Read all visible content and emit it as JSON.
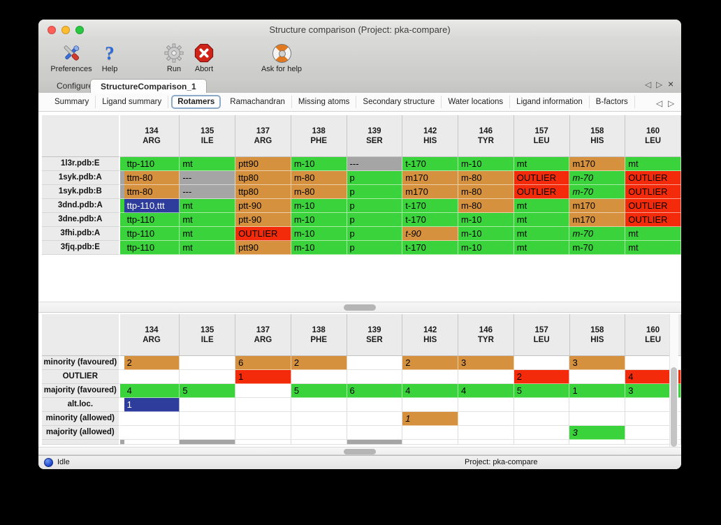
{
  "window": {
    "title": "Structure comparison (Project: pka-compare)"
  },
  "toolbar": {
    "items": [
      {
        "label": "Preferences",
        "icon": "preferences-icon"
      },
      {
        "label": "Help",
        "icon": "help-icon"
      },
      {
        "label": "Run",
        "icon": "run-icon"
      },
      {
        "label": "Abort",
        "icon": "abort-icon"
      },
      {
        "label": "Ask for help",
        "icon": "ask-for-help-icon"
      }
    ]
  },
  "tabs": {
    "items": [
      "Configure",
      "StructureComparison_1"
    ],
    "active": "StructureComparison_1"
  },
  "subtabs": {
    "items": [
      "Summary",
      "Ligand summary",
      "Rotamers",
      "Ramachandran",
      "Missing atoms",
      "Secondary structure",
      "Water locations",
      "Ligand information",
      "B-factors"
    ],
    "active": "Rotamers"
  },
  "icons": {
    "prev_glyph": "◁",
    "next_glyph": "▷",
    "close_glyph": "×",
    "help_glyph": "?"
  },
  "colors": {
    "g": "#3bd33b",
    "o": "#d5913d",
    "r": "#f42b0b",
    "x": "#a5a5a5",
    "b": "#2e3d9b"
  },
  "columns": [
    {
      "num": "134",
      "res": "ARG"
    },
    {
      "num": "135",
      "res": "ILE"
    },
    {
      "num": "137",
      "res": "ARG"
    },
    {
      "num": "138",
      "res": "PHE"
    },
    {
      "num": "139",
      "res": "SER"
    },
    {
      "num": "142",
      "res": "HIS"
    },
    {
      "num": "146",
      "res": "TYR"
    },
    {
      "num": "157",
      "res": "LEU"
    },
    {
      "num": "158",
      "res": "HIS"
    },
    {
      "num": "160",
      "res": "LEU"
    }
  ],
  "top_table": {
    "rows": [
      {
        "label": "1l3r.pdb:E",
        "edge": "g",
        "cells": [
          [
            "ttp-110",
            "g"
          ],
          [
            "mt",
            "g"
          ],
          [
            "ptt90",
            "o"
          ],
          [
            "m-10",
            "g"
          ],
          [
            "---",
            "x"
          ],
          [
            "t-170",
            "g"
          ],
          [
            "m-10",
            "g"
          ],
          [
            "mt",
            "g"
          ],
          [
            "m170",
            "o"
          ],
          [
            "mt",
            "g"
          ]
        ]
      },
      {
        "label": "1syk.pdb:A",
        "edge": "x",
        "cells": [
          [
            "ttm-80",
            "o"
          ],
          [
            "---",
            "x"
          ],
          [
            "ttp80",
            "o"
          ],
          [
            "m-80",
            "o"
          ],
          [
            "p",
            "g"
          ],
          [
            "m170",
            "o"
          ],
          [
            "m-80",
            "o"
          ],
          [
            "OUTLIER",
            "r"
          ],
          [
            "m-70",
            "g",
            1
          ],
          [
            "OUTLIER",
            "r"
          ]
        ]
      },
      {
        "label": "1syk.pdb:B",
        "edge": "x",
        "cells": [
          [
            "ttm-80",
            "o"
          ],
          [
            "---",
            "x"
          ],
          [
            "ttp80",
            "o"
          ],
          [
            "m-80",
            "o"
          ],
          [
            "p",
            "g"
          ],
          [
            "m170",
            "o"
          ],
          [
            "m-80",
            "o"
          ],
          [
            "OUTLIER",
            "r"
          ],
          [
            "m-70",
            "g",
            1
          ],
          [
            "OUTLIER",
            "r"
          ]
        ]
      },
      {
        "label": "3dnd.pdb:A",
        "edge": "g",
        "cells": [
          [
            "ttp-110,ttt",
            "b"
          ],
          [
            "mt",
            "g"
          ],
          [
            "ptt-90",
            "o"
          ],
          [
            "m-10",
            "g"
          ],
          [
            "p",
            "g"
          ],
          [
            "t-170",
            "g"
          ],
          [
            "m-80",
            "o"
          ],
          [
            "mt",
            "g"
          ],
          [
            "m170",
            "o"
          ],
          [
            "OUTLIER",
            "r"
          ]
        ]
      },
      {
        "label": "3dne.pdb:A",
        "edge": "g",
        "cells": [
          [
            "ttp-110",
            "g"
          ],
          [
            "mt",
            "g"
          ],
          [
            "ptt-90",
            "o"
          ],
          [
            "m-10",
            "g"
          ],
          [
            "p",
            "g"
          ],
          [
            "t-170",
            "g"
          ],
          [
            "m-10",
            "g"
          ],
          [
            "mt",
            "g"
          ],
          [
            "m170",
            "o"
          ],
          [
            "OUTLIER",
            "r"
          ]
        ]
      },
      {
        "label": "3fhi.pdb:A",
        "edge": "g",
        "cells": [
          [
            "ttp-110",
            "g"
          ],
          [
            "mt",
            "g"
          ],
          [
            "OUTLIER",
            "r"
          ],
          [
            "m-10",
            "g"
          ],
          [
            "p",
            "g"
          ],
          [
            "t-90",
            "o",
            1
          ],
          [
            "m-10",
            "g"
          ],
          [
            "mt",
            "g"
          ],
          [
            "m-70",
            "g",
            1
          ],
          [
            "mt",
            "g"
          ]
        ]
      },
      {
        "label": "3fjq.pdb:E",
        "edge": "g",
        "cells": [
          [
            "ttp-110",
            "g"
          ],
          [
            "mt",
            "g"
          ],
          [
            "ptt90",
            "o"
          ],
          [
            "m-10",
            "g"
          ],
          [
            "p",
            "g"
          ],
          [
            "t-170",
            "g"
          ],
          [
            "m-10",
            "g"
          ],
          [
            "mt",
            "g"
          ],
          [
            "m-70",
            "g"
          ],
          [
            "mt",
            "g"
          ]
        ]
      }
    ]
  },
  "bottom_table": {
    "rows": [
      {
        "label": "minority (favoured)",
        "edge": "",
        "cells": [
          [
            "2",
            "o"
          ],
          [
            "",
            ""
          ],
          [
            "6",
            "o"
          ],
          [
            "2",
            "o"
          ],
          [
            "",
            ""
          ],
          [
            "2",
            "o"
          ],
          [
            "3",
            "o"
          ],
          [
            "",
            ""
          ],
          [
            "3",
            "o"
          ],
          [
            "",
            ""
          ]
        ]
      },
      {
        "label": "OUTLIER",
        "edge": "",
        "cells": [
          [
            "",
            ""
          ],
          [
            "",
            ""
          ],
          [
            "1",
            "r"
          ],
          [
            "",
            ""
          ],
          [
            "",
            ""
          ],
          [
            "",
            ""
          ],
          [
            "",
            ""
          ],
          [
            "2",
            "r"
          ],
          [
            "",
            ""
          ],
          [
            "4",
            "r"
          ]
        ]
      },
      {
        "label": "majority (favoured)",
        "edge": "g",
        "cells": [
          [
            "4",
            "g"
          ],
          [
            "5",
            "g"
          ],
          [
            "",
            ""
          ],
          [
            "5",
            "g"
          ],
          [
            "6",
            "g"
          ],
          [
            "4",
            "g"
          ],
          [
            "4",
            "g"
          ],
          [
            "5",
            "g"
          ],
          [
            "1",
            "g"
          ],
          [
            "3",
            "g"
          ]
        ]
      },
      {
        "label": "alt.loc.",
        "edge": "",
        "cells": [
          [
            "1",
            "b"
          ],
          [
            "",
            ""
          ],
          [
            "",
            ""
          ],
          [
            "",
            ""
          ],
          [
            "",
            ""
          ],
          [
            "",
            ""
          ],
          [
            "",
            ""
          ],
          [
            "",
            ""
          ],
          [
            "",
            ""
          ],
          [
            "",
            ""
          ]
        ]
      },
      {
        "label": "minority (allowed)",
        "edge": "",
        "cells": [
          [
            "",
            ""
          ],
          [
            "",
            ""
          ],
          [
            "",
            ""
          ],
          [
            "",
            ""
          ],
          [
            "",
            ""
          ],
          [
            "1",
            "o",
            1
          ],
          [
            "",
            ""
          ],
          [
            "",
            ""
          ],
          [
            "",
            ""
          ],
          [
            "",
            ""
          ]
        ]
      },
      {
        "label": "majority (allowed)",
        "edge": "",
        "cells": [
          [
            "",
            ""
          ],
          [
            "",
            ""
          ],
          [
            "",
            ""
          ],
          [
            "",
            ""
          ],
          [
            "",
            ""
          ],
          [
            "",
            ""
          ],
          [
            "",
            ""
          ],
          [
            "",
            ""
          ],
          [
            "3",
            "g",
            1
          ],
          [
            "",
            ""
          ]
        ]
      }
    ],
    "partial_row": {
      "edge": "x",
      "cells": [
        [
          "",
          ""
        ],
        [
          "",
          "x"
        ],
        [
          "",
          ""
        ],
        [
          "",
          ""
        ],
        [
          "",
          "x"
        ],
        [
          "",
          ""
        ],
        [
          "",
          ""
        ],
        [
          "",
          ""
        ],
        [
          "",
          ""
        ],
        [
          "",
          ""
        ]
      ]
    }
  },
  "statusbar": {
    "status": "Idle",
    "project": "Project: pka-compare"
  }
}
